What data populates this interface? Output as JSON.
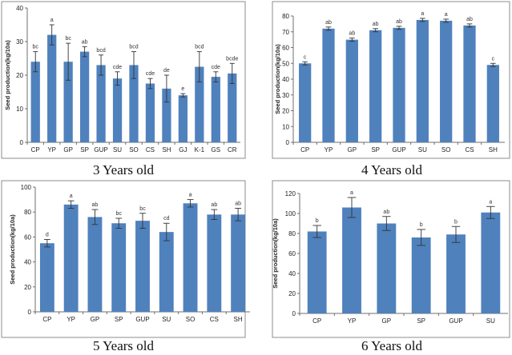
{
  "chart_data": [
    {
      "type": "bar",
      "caption": "3 Years old",
      "ylabel": "Seed production(kg/10a)",
      "ylim": [
        0,
        40
      ],
      "yticks": [
        0,
        10,
        20,
        30,
        40
      ],
      "categories": [
        "CP",
        "YP",
        "GP",
        "SP",
        "GUP",
        "SU",
        "SO",
        "CS",
        "SH",
        "GJ",
        "K-1",
        "GS",
        "CR"
      ],
      "values": [
        24,
        32,
        24,
        27,
        23,
        19,
        23,
        17.5,
        16,
        14,
        22.5,
        19.5,
        20.5
      ],
      "errors": [
        3,
        3,
        5.5,
        1.5,
        3,
        2,
        4,
        1.5,
        4,
        0.5,
        4.5,
        1.5,
        3
      ],
      "letters": [
        "bc",
        "a",
        "bc",
        "ab",
        "bcd",
        "cde",
        "bcd",
        "cde",
        "de",
        "e",
        "bcd",
        "cde",
        "bcde"
      ],
      "color": "#4f81bd"
    },
    {
      "type": "bar",
      "caption": "4 Years old",
      "ylabel": "Seed production(kg/10a)",
      "ylim": [
        0,
        80
      ],
      "yticks": [
        0,
        10,
        20,
        30,
        40,
        50,
        60,
        70,
        80
      ],
      "categories": [
        "CP",
        "YP",
        "GP",
        "SP",
        "GUP",
        "SU",
        "SO",
        "CS",
        "SH"
      ],
      "values": [
        50,
        72,
        65,
        71,
        72.5,
        77.5,
        77,
        74,
        49
      ],
      "errors": [
        1,
        1,
        1,
        1,
        1,
        1,
        1,
        1,
        1
      ],
      "letters": [
        "c",
        "ab",
        "ab",
        "ab",
        "ab",
        "a",
        "a",
        "ab",
        "c"
      ],
      "color": "#4f81bd"
    },
    {
      "type": "bar",
      "caption": "5 Years old",
      "ylabel": "Seed production(kg/10a)",
      "ylim": [
        0,
        100
      ],
      "yticks": [
        0,
        20,
        40,
        60,
        80,
        100
      ],
      "categories": [
        "CP",
        "YP",
        "GP",
        "SP",
        "GUP",
        "SU",
        "SO",
        "CS",
        "SH"
      ],
      "values": [
        55,
        86,
        76,
        71,
        73,
        64,
        87,
        78,
        78
      ],
      "errors": [
        3,
        3,
        6,
        4,
        6,
        7,
        3,
        4,
        5
      ],
      "letters": [
        "d",
        "a",
        "ab",
        "bc",
        "bc",
        "cd",
        "a",
        "ab",
        "ab"
      ],
      "color": "#4f81bd"
    },
    {
      "type": "bar",
      "caption": "6 Years old",
      "ylabel": "Seed production(kg/10a)",
      "ylim": [
        0,
        120
      ],
      "yticks": [
        0,
        20,
        40,
        60,
        80,
        100,
        120
      ],
      "categories": [
        "CP",
        "YP",
        "GP",
        "SP",
        "GUP",
        "SU"
      ],
      "values": [
        82,
        106,
        90,
        76,
        79,
        101
      ],
      "errors": [
        6,
        10,
        7,
        8,
        8,
        6
      ],
      "letters": [
        "b",
        "a",
        "ab",
        "b",
        "b",
        "a"
      ],
      "color": "#4f81bd"
    }
  ]
}
